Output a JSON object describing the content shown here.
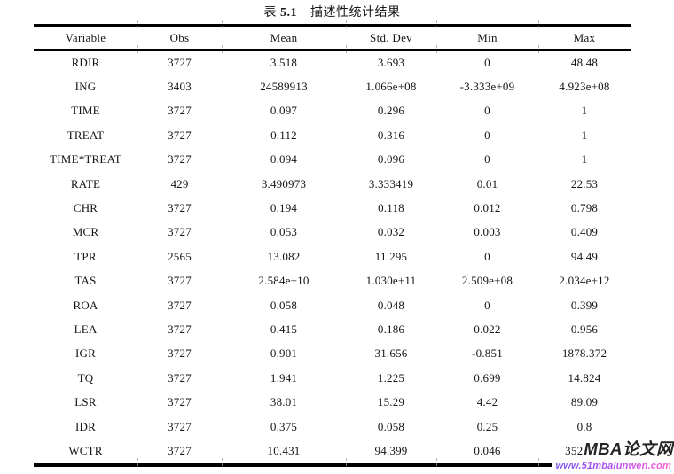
{
  "title": {
    "prefix": "表",
    "number": "5.1",
    "text": "描述性统计结果"
  },
  "table": {
    "columns": [
      "Variable",
      "Obs",
      "Mean",
      "Std. Dev",
      "Min",
      "Max"
    ],
    "rows": [
      [
        "RDIR",
        "3727",
        "3.518",
        "3.693",
        "0",
        "48.48"
      ],
      [
        "ING",
        "3403",
        "24589913",
        "1.066e+08",
        "-3.333e+09",
        "4.923e+08"
      ],
      [
        "TIME",
        "3727",
        "0.097",
        "0.296",
        "0",
        "1"
      ],
      [
        "TREAT",
        "3727",
        "0.112",
        "0.316",
        "0",
        "1"
      ],
      [
        "TIME*TREAT",
        "3727",
        "0.094",
        "0.096",
        "0",
        "1"
      ],
      [
        "RATE",
        "429",
        "3.490973",
        "3.333419",
        "0.01",
        "22.53"
      ],
      [
        "CHR",
        "3727",
        "0.194",
        "0.118",
        "0.012",
        "0.798"
      ],
      [
        "MCR",
        "3727",
        "0.053",
        "0.032",
        "0.003",
        "0.409"
      ],
      [
        "TPR",
        "2565",
        "13.082",
        "11.295",
        "0",
        "94.49"
      ],
      [
        "TAS",
        "3727",
        "2.584e+10",
        "1.030e+11",
        "2.509e+08",
        "2.034e+12"
      ],
      [
        "ROA",
        "3727",
        "0.058",
        "0.048",
        "0",
        "0.399"
      ],
      [
        "LEA",
        "3727",
        "0.415",
        "0.186",
        "0.022",
        "0.956"
      ],
      [
        "IGR",
        "3727",
        "0.901",
        "31.656",
        "-0.851",
        "1878.372"
      ],
      [
        "TQ",
        "3727",
        "1.941",
        "1.225",
        "0.699",
        "14.824"
      ],
      [
        "LSR",
        "3727",
        "38.01",
        "15.29",
        "4.42",
        "89.09"
      ],
      [
        "IDR",
        "3727",
        "0.375",
        "0.058",
        "0.25",
        "0.8"
      ],
      [
        "WCTR",
        "3727",
        "10.431",
        "94.399",
        "0.046",
        "3529.10"
      ]
    ]
  },
  "watermark": {
    "brand": "MBA论文网",
    "url": "www.51mbalunwen.com",
    "brand_color": "#242424",
    "url_gradient": [
      "#7a56ee",
      "#b44cf0",
      "#ff5fd2"
    ]
  }
}
